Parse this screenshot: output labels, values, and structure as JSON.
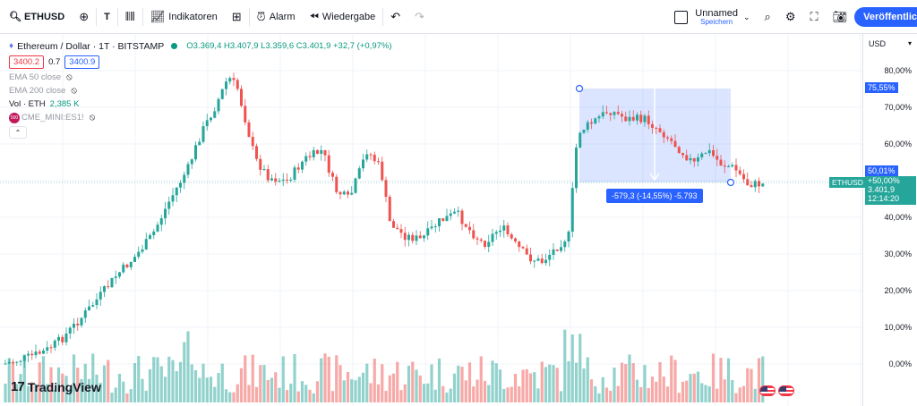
{
  "toolbar": {
    "symbol": "ETHUSD",
    "interval": "T",
    "indicators_label": "Indikatoren",
    "alarm_label": "Alarm",
    "replay_label": "Wiedergabe",
    "layout_name": "Unnamed",
    "layout_sub": "Speichern",
    "publish_label": "Veröffentlic"
  },
  "legend": {
    "title": "Ethereum / Dollar · 1T · BITSTAMP",
    "ohlc": "O3.369,4 H3.407,9 L3.359,6 C3.401,9 +32,7 (+0,97%)",
    "sell_price": "3400.2",
    "spread": "0.7",
    "buy_price": "3400.9",
    "ema50": "EMA 50 close",
    "ema200": "EMA 200 close",
    "vol_label": "Vol · ETH",
    "vol_value": "2,385 K",
    "cme_label": "CME_MINI:ES1!",
    "cme_badge": "500"
  },
  "price_scale": {
    "currency": "USD",
    "labels": [
      "80,00%",
      "70,00%",
      "60,00%",
      "40,00%",
      "30,00%",
      "20,00%",
      "10,00%",
      "0,00%"
    ],
    "tag_top": "75,55%",
    "tag_mid": "50,01%",
    "current_pct": "+50,00%",
    "current_price": "3.401,9",
    "countdown": "12:14:20",
    "ethusd_tag": "ETHUSD"
  },
  "measure": {
    "label": "-579,3 (-14,55%) -5.793"
  },
  "logo_text": "TradingView",
  "colors": {
    "up": "#26a69a",
    "down": "#ef5350",
    "accent": "#2962ff"
  }
}
